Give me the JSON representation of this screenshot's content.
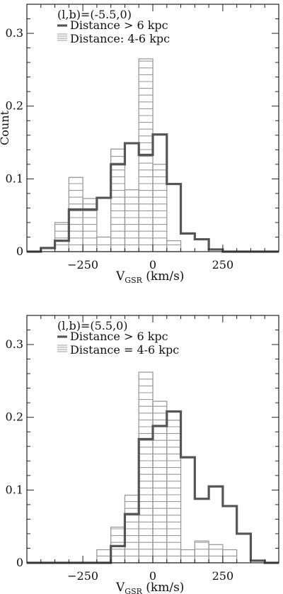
{
  "chart_data": [
    {
      "type": "histogram",
      "title": "",
      "annotation": "(l,b)=(-5.5,0)",
      "xlabel_main": "V",
      "xlabel_sub": "GSR",
      "xlabel_unit": "(km/s)",
      "ylabel": "Count",
      "xlim": [
        -450,
        450
      ],
      "ylim": [
        0,
        0.34
      ],
      "xticks": [
        -250,
        0,
        250
      ],
      "yticks": [
        0,
        0.1,
        0.2,
        0.3
      ],
      "bin_width": 50,
      "series": [
        {
          "name": "Distance > 6 kpc",
          "style": "step-dark",
          "color": "#555555",
          "bins": [
            [
              -400,
              -350,
              0.005
            ],
            [
              -350,
              -300,
              0.015
            ],
            [
              -300,
              -250,
              0.058
            ],
            [
              -250,
              -200,
              0.058
            ],
            [
              -200,
              -150,
              0.074
            ],
            [
              -150,
              -100,
              0.12
            ],
            [
              -100,
              -50,
              0.149
            ],
            [
              -50,
              0,
              0.133
            ],
            [
              0,
              50,
              0.161
            ],
            [
              50,
              100,
              0.093
            ],
            [
              100,
              150,
              0.025
            ],
            [
              150,
              200,
              0.017
            ],
            [
              200,
              250,
              0.003
            ]
          ]
        },
        {
          "name": "Distance: 4-6 kpc",
          "style": "hatched-light",
          "color": "#999999",
          "bins": [
            [
              -350,
              -300,
              0.04
            ],
            [
              -300,
              -250,
              0.102
            ],
            [
              -250,
              -200,
              0.073
            ],
            [
              -200,
              -150,
              0.02
            ],
            [
              -150,
              -100,
              0.141
            ],
            [
              -100,
              -50,
              0.085
            ],
            [
              -50,
              0,
              0.265
            ],
            [
              0,
              50,
              0.12
            ],
            [
              50,
              100,
              0.015
            ]
          ]
        }
      ]
    },
    {
      "type": "histogram",
      "title": "",
      "annotation": "(l,b)=(5.5,0)",
      "xlabel_main": "V",
      "xlabel_sub": "GSR",
      "xlabel_unit": "(km/s)",
      "ylabel": "",
      "xlim": [
        -450,
        450
      ],
      "ylim": [
        0,
        0.34
      ],
      "xticks": [
        -250,
        0,
        250
      ],
      "yticks": [
        0,
        0.1,
        0.2,
        0.3
      ],
      "bin_width": 50,
      "series": [
        {
          "name": "Distance > 6 kpc",
          "style": "step-dark",
          "color": "#555555",
          "bins": [
            [
              -150,
              -100,
              0.023
            ],
            [
              -100,
              -50,
              0.067
            ],
            [
              -50,
              0,
              0.17
            ],
            [
              0,
              50,
              0.188
            ],
            [
              50,
              100,
              0.208
            ],
            [
              100,
              150,
              0.145
            ],
            [
              150,
              200,
              0.088
            ],
            [
              200,
              250,
              0.105
            ],
            [
              250,
              300,
              0.078
            ],
            [
              300,
              350,
              0.04
            ],
            [
              350,
              400,
              0.003
            ]
          ]
        },
        {
          "name": "Distance = 4-6 kpc",
          "style": "hatched-light",
          "color": "#999999",
          "bins": [
            [
              -200,
              -150,
              0.018
            ],
            [
              -150,
              -100,
              0.049
            ],
            [
              -100,
              -50,
              0.093
            ],
            [
              -50,
              0,
              0.262
            ],
            [
              0,
              50,
              0.222
            ],
            [
              50,
              100,
              0.196
            ],
            [
              100,
              150,
              0.018
            ],
            [
              150,
              200,
              0.03
            ],
            [
              200,
              250,
              0.025
            ],
            [
              250,
              300,
              0.018
            ]
          ]
        }
      ]
    }
  ]
}
